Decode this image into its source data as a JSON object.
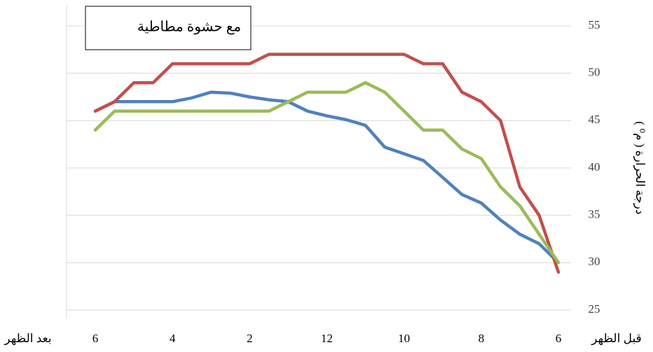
{
  "chart_data": {
    "type": "line",
    "title": "مع حشوة مطاطية",
    "y_label": "درجة الحرارة ( م⁰ )",
    "x_start_label": "قبل الظهر",
    "x_end_label": "بعد الظهر",
    "x_reversed": true,
    "categories": [
      "6",
      null,
      null,
      null,
      "8",
      null,
      null,
      null,
      "10",
      null,
      null,
      null,
      "12",
      null,
      null,
      null,
      "2",
      null,
      null,
      null,
      "4",
      null,
      null,
      null,
      "6"
    ],
    "series": [
      {
        "color": "#4f81bd",
        "values": [
          30,
          32,
          33,
          34.5,
          36.3,
          37.2,
          39,
          40.8,
          41.5,
          42.2,
          44.5,
          45.1,
          45.5,
          46,
          47,
          47.2,
          47.5,
          47.9,
          48,
          47.4,
          47,
          47,
          47,
          47,
          46
        ]
      },
      {
        "color": "#c0504d",
        "values": [
          29,
          35,
          38,
          45,
          47,
          48,
          51,
          51,
          52,
          52,
          52,
          52,
          52,
          52,
          52,
          52,
          51,
          51,
          51,
          51,
          51,
          49,
          49,
          47,
          46
        ]
      },
      {
        "color": "#9bbb59",
        "values": [
          30,
          33,
          36,
          38,
          41,
          42,
          44,
          44,
          46,
          48,
          49,
          48,
          48,
          48,
          47,
          46,
          46,
          46,
          46,
          46,
          46,
          46,
          46,
          46,
          44
        ]
      }
    ],
    "ylim": [
      25,
      55
    ],
    "yticks": [
      25,
      30,
      35,
      40,
      45,
      50,
      55
    ],
    "grid": true
  }
}
